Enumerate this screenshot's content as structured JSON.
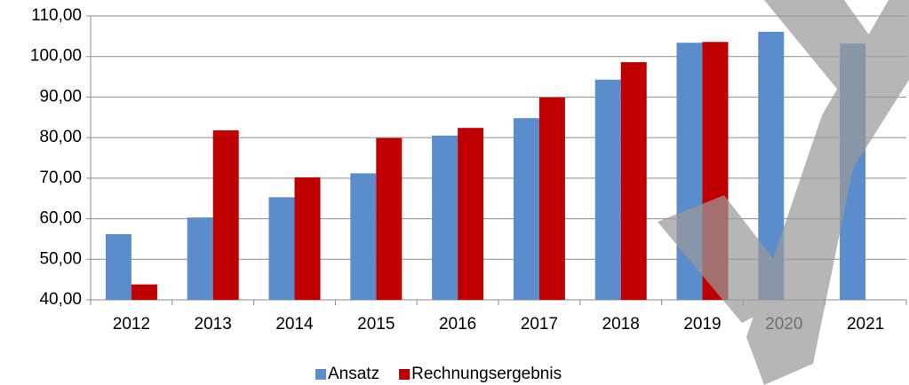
{
  "chart_data": {
    "type": "bar",
    "categories": [
      "2012",
      "2013",
      "2014",
      "2015",
      "2016",
      "2017",
      "2018",
      "2019",
      "2020",
      "2021"
    ],
    "series": [
      {
        "name": "Ansatz",
        "color": "#5b8ccc",
        "values": [
          56.2,
          60.3,
          65.3,
          71.2,
          80.5,
          84.8,
          94.3,
          103.4,
          106.1,
          103.2
        ]
      },
      {
        "name": "Rechnungsergebnis",
        "color": "#c00000",
        "values": [
          43.8,
          81.8,
          70.2,
          79.9,
          82.4,
          89.9,
          98.6,
          103.6,
          null,
          null
        ]
      }
    ],
    "ylim": [
      40,
      110
    ],
    "yticks": [
      {
        "value": 40,
        "label": "40,00"
      },
      {
        "value": 50,
        "label": "50,00"
      },
      {
        "value": 60,
        "label": "60,00"
      },
      {
        "value": 70,
        "label": "70,00"
      },
      {
        "value": 80,
        "label": "80,00"
      },
      {
        "value": 90,
        "label": "90,00"
      },
      {
        "value": 100,
        "label": "100,00"
      },
      {
        "value": 110,
        "label": "110,00"
      }
    ],
    "grid": true,
    "legend": "bottom"
  }
}
